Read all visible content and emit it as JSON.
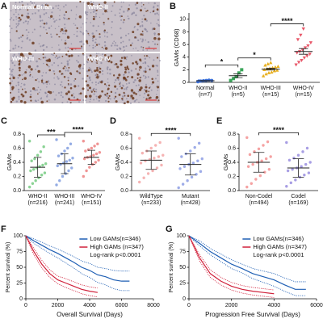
{
  "figure": {
    "panel_label": "A",
    "images": [
      {
        "label": "Normal/ Brian"
      },
      {
        "label": "WHO-II"
      },
      {
        "label": "WHO-III"
      },
      {
        "label": "WHO-IV"
      }
    ]
  },
  "chart_data": [
    {
      "type": "dot",
      "panel_label": "B",
      "y_label": "GAMs (CD68)",
      "ylim": [
        0,
        11
      ],
      "yticks": [
        0,
        2,
        4,
        6,
        8,
        10
      ],
      "series": [
        {
          "name": "Normal",
          "note": "(n=7)",
          "color": "#3a6fd8",
          "marker": "circle",
          "values": [
            0.1,
            0.2,
            0.25,
            0.3,
            0.35,
            0.3,
            0.2
          ],
          "mean": 0.25,
          "error": 0.04
        },
        {
          "name": "WHO-II",
          "note": "(n=5)",
          "color": "#3aa65a",
          "marker": "square",
          "values": [
            0.3,
            0.6,
            0.9,
            1.5,
            2.0
          ],
          "mean": 1.05,
          "error": 0.3
        },
        {
          "name": "WHO-III",
          "note": "(n=15)",
          "color": "#e8b020",
          "marker": "triangle",
          "values": [
            1.0,
            1.3,
            1.5,
            1.6,
            1.8,
            1.9,
            2.0,
            2.1,
            2.2,
            2.3,
            2.4,
            2.5,
            2.7,
            2.9,
            3.1
          ],
          "mean": 2.1,
          "error": 0.15
        },
        {
          "name": "WHO-IV",
          "note": "(n=15)",
          "color": "#e8586a",
          "marker": "triangle-down",
          "values": [
            2.8,
            3.2,
            3.5,
            3.9,
            4.2,
            4.5,
            4.7,
            4.9,
            5.2,
            5.5,
            5.8,
            6.3,
            6.8,
            7.5,
            8.5
          ],
          "mean": 4.9,
          "error": 0.45
        }
      ],
      "significance": [
        {
          "between": [
            "Normal",
            "WHO-II"
          ],
          "label": "*"
        },
        {
          "between": [
            "WHO-II",
            "WHO-III"
          ],
          "label": "*"
        },
        {
          "between": [
            "WHO-III",
            "WHO-IV"
          ],
          "label": "****"
        }
      ]
    },
    {
      "type": "dot",
      "panel_label": "C",
      "y_label": "GAMs",
      "ylim": [
        0,
        0.8
      ],
      "yticks": [
        {
          "value": 0,
          "label": "0.0"
        },
        0.2,
        0.4,
        0.6,
        0.8
      ],
      "series": [
        {
          "name": "WHO-II",
          "note": "(n=216)",
          "color": "#4cbb5a",
          "marker": "circle",
          "values": [
            0.05,
            0.1,
            0.14,
            0.18,
            0.22,
            0.25,
            0.28,
            0.3,
            0.32,
            0.34,
            0.36,
            0.38,
            0.42,
            0.45,
            0.5,
            0.55,
            0.62,
            0.7
          ],
          "mean": 0.33,
          "error": 0.14
        },
        {
          "name": "WHO-III",
          "note": "(n=241)",
          "color": "#5b7fd6",
          "marker": "circle",
          "values": [
            0.08,
            0.14,
            0.2,
            0.24,
            0.28,
            0.32,
            0.35,
            0.37,
            0.39,
            0.41,
            0.43,
            0.46,
            0.49,
            0.52,
            0.56,
            0.6,
            0.66,
            0.72
          ],
          "mean": 0.38,
          "error": 0.14
        },
        {
          "name": "WHO-IV",
          "note": "(n=151)",
          "color": "#e65a5a",
          "marker": "circle",
          "values": [
            0.2,
            0.28,
            0.33,
            0.37,
            0.4,
            0.43,
            0.45,
            0.47,
            0.48,
            0.5,
            0.52,
            0.54,
            0.56,
            0.58,
            0.6,
            0.63,
            0.66,
            0.7
          ],
          "mean": 0.47,
          "error": 0.1
        }
      ],
      "significance": [
        {
          "between": [
            "WHO-II",
            "WHO-III"
          ],
          "label": "***"
        },
        {
          "between": [
            "WHO-III",
            "WHO-IV"
          ],
          "label": "****"
        }
      ]
    },
    {
      "type": "dot",
      "panel_label": "D",
      "y_label": "GAMs",
      "ylim": [
        0,
        0.8
      ],
      "yticks": [
        {
          "value": 0,
          "label": "0.0"
        },
        0.2,
        0.4,
        0.6,
        0.8
      ],
      "series": [
        {
          "name": "WildType",
          "note": "(n=233)",
          "color": "#f08a8a",
          "marker": "circle",
          "values": [
            0.12,
            0.18,
            0.24,
            0.28,
            0.32,
            0.36,
            0.39,
            0.42,
            0.44,
            0.46,
            0.48,
            0.5,
            0.53,
            0.56,
            0.6,
            0.64,
            0.68,
            0.74
          ],
          "mean": 0.43,
          "error": 0.13
        },
        {
          "name": "Mutant",
          "note": "(n=428)",
          "color": "#6a7fdb",
          "marker": "circle",
          "values": [
            0.04,
            0.09,
            0.14,
            0.19,
            0.23,
            0.27,
            0.31,
            0.34,
            0.37,
            0.39,
            0.42,
            0.45,
            0.48,
            0.52,
            0.56,
            0.61,
            0.67,
            0.74
          ],
          "mean": 0.37,
          "error": 0.15
        }
      ],
      "significance": [
        {
          "between": [
            "WildType",
            "Mutant"
          ],
          "label": "****"
        }
      ]
    },
    {
      "type": "dot",
      "panel_label": "E",
      "y_label": "GAMs",
      "ylim": [
        0,
        0.8
      ],
      "yticks": [
        {
          "value": 0,
          "label": "0.0"
        },
        0.2,
        0.4,
        0.6,
        0.8
      ],
      "series": [
        {
          "name": "Non-Codel",
          "note": "(n=494)",
          "color": "#f07070",
          "marker": "circle",
          "values": [
            0.05,
            0.1,
            0.16,
            0.21,
            0.26,
            0.3,
            0.34,
            0.37,
            0.4,
            0.42,
            0.45,
            0.48,
            0.51,
            0.55,
            0.59,
            0.64,
            0.69,
            0.75
          ],
          "mean": 0.4,
          "error": 0.14
        },
        {
          "name": "Codel",
          "note": "(n=169)",
          "color": "#7a6ad6",
          "marker": "circle",
          "values": [
            0.06,
            0.11,
            0.15,
            0.19,
            0.22,
            0.25,
            0.28,
            0.3,
            0.32,
            0.34,
            0.37,
            0.4,
            0.43,
            0.46,
            0.5,
            0.55,
            0.6,
            0.68
          ],
          "mean": 0.32,
          "error": 0.13
        }
      ],
      "significance": [
        {
          "between": [
            "Non-Codel",
            "Codel"
          ],
          "label": "****"
        }
      ]
    },
    {
      "type": "survival",
      "panel_label": "F",
      "x_label": "Overall Survival (Days)",
      "y_label": "Percent survival (%)",
      "annotation": "Log-rank p<0.0001",
      "xlim": [
        0,
        8000
      ],
      "xticks": [
        0,
        2000,
        4000,
        6000,
        8000
      ],
      "ylim": [
        0,
        100
      ],
      "yticks": [
        0,
        25,
        50,
        75,
        100
      ],
      "series": [
        {
          "name": "Low GAMs(n=346)",
          "color": "#1f5fb4",
          "x": [
            0,
            500,
            1000,
            1500,
            2000,
            2500,
            3000,
            3500,
            4000,
            4500,
            5000,
            5500,
            6000,
            6500
          ],
          "values": [
            100,
            92,
            85,
            78,
            72,
            65,
            58,
            50,
            45,
            38,
            35,
            30,
            28,
            28
          ],
          "ci_lower": [
            100,
            88,
            80,
            72,
            65,
            57,
            49,
            40,
            34,
            26,
            22,
            16,
            13,
            13
          ],
          "ci_upper": [
            100,
            95,
            90,
            84,
            79,
            73,
            67,
            60,
            56,
            50,
            48,
            45,
            44,
            44
          ]
        },
        {
          "name": "High GAMs (n=347)",
          "color": "#d0203a",
          "x": [
            0,
            500,
            1000,
            1500,
            2000,
            2500,
            3000,
            3500,
            4000,
            4500
          ],
          "values": [
            100,
            75,
            55,
            40,
            30,
            25,
            20,
            15,
            12,
            10
          ],
          "ci_lower": [
            100,
            70,
            49,
            34,
            24,
            18,
            13,
            8,
            5,
            3
          ],
          "ci_upper": [
            100,
            80,
            61,
            46,
            36,
            32,
            27,
            22,
            19,
            17
          ]
        }
      ]
    },
    {
      "type": "survival",
      "panel_label": "G",
      "x_label": "Progression Free Survival (Days)",
      "y_label": "Percent survival (%)",
      "annotation": "Log-rank p<0.0001",
      "xlim": [
        0,
        6000
      ],
      "xticks": [
        0,
        2000,
        4000,
        6000
      ],
      "ylim": [
        0,
        100
      ],
      "yticks": [
        0,
        25,
        50,
        75,
        100
      ],
      "series": [
        {
          "name": "Low GAMs(n=346)",
          "color": "#1f5fb4",
          "x": [
            0,
            500,
            1000,
            1500,
            2000,
            2500,
            3000,
            3500,
            4000,
            4500,
            5000,
            5500
          ],
          "values": [
            100,
            88,
            75,
            65,
            55,
            48,
            40,
            35,
            30,
            22,
            15,
            15
          ],
          "ci_lower": [
            100,
            84,
            70,
            59,
            48,
            41,
            32,
            26,
            20,
            12,
            5,
            5
          ],
          "ci_upper": [
            100,
            92,
            80,
            71,
            62,
            55,
            48,
            44,
            40,
            33,
            27,
            27
          ]
        },
        {
          "name": "High GAMs (n=347)",
          "color": "#d0203a",
          "x": [
            0,
            500,
            1000,
            1500,
            2000,
            2500,
            3000,
            3500,
            4000
          ],
          "values": [
            100,
            65,
            40,
            28,
            20,
            15,
            12,
            10,
            8
          ],
          "ci_lower": [
            100,
            60,
            34,
            22,
            14,
            9,
            6,
            4,
            2
          ],
          "ci_upper": [
            100,
            70,
            46,
            34,
            26,
            21,
            18,
            16,
            14
          ]
        }
      ]
    }
  ]
}
